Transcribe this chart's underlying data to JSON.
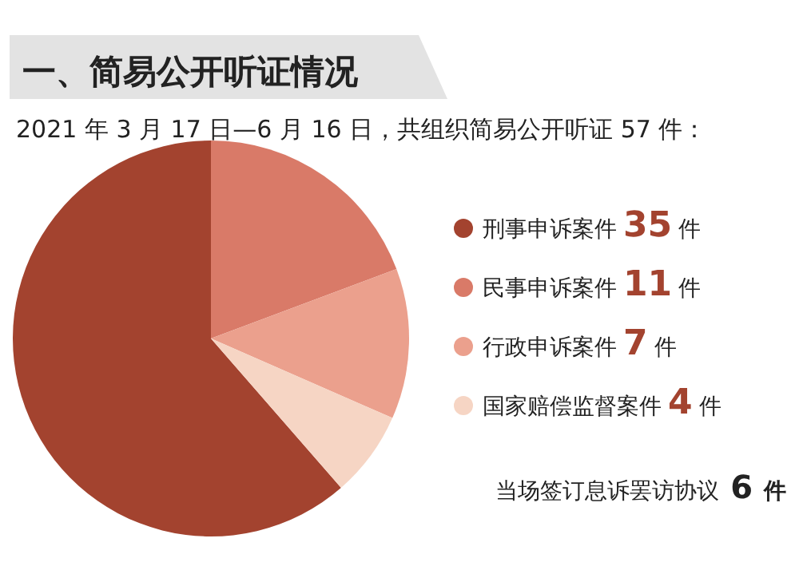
{
  "chart_data": {
    "type": "pie",
    "title": "一、简易公开听证情况",
    "subtitle": "2021 年 3 月 17 日—6 月 16 日，共组织简易公开听证 57 件：",
    "categories": [
      "刑事申诉案件",
      "民事申诉案件",
      "行政申诉案件",
      "国家赔偿监督案件"
    ],
    "values": [
      35,
      11,
      7,
      4
    ],
    "value_labels": [
      "35 件",
      "11 件",
      "7 件",
      "4 件"
    ],
    "colors": [
      "#a3432f",
      "#d97a68",
      "#eba08d",
      "#f6d5c4"
    ],
    "legend": "right",
    "annotations": [
      "当场签订息诉罢访协议 6 件"
    ]
  }
}
